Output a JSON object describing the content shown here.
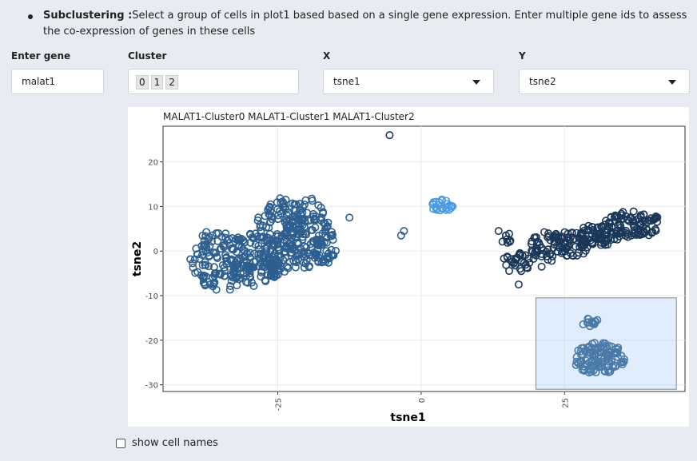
{
  "instructions": {
    "title": "Subclustering :",
    "text": "Select a group of cells in plot1 based based on a single gene expression. Enter multiple gene ids to assess the co-expression of genes in these cells"
  },
  "controls": {
    "gene": {
      "label": "Enter gene",
      "value": "malat1"
    },
    "cluster": {
      "label": "Cluster",
      "chips": [
        "0",
        "1",
        "2"
      ]
    },
    "x": {
      "label": "X",
      "value": "tsne1"
    },
    "y": {
      "label": "Y",
      "value": "tsne2"
    }
  },
  "show_cell_names_label": "show cell names",
  "chart_data": {
    "type": "scatter",
    "title": "MALAT1-Cluster0 MALAT1-Cluster1 MALAT1-Cluster2",
    "xlabel": "tsne1",
    "ylabel": "tsne2",
    "xlim": [
      -45,
      46
    ],
    "ylim": [
      -31.5,
      28
    ],
    "xticks": [
      -25,
      0,
      25
    ],
    "yticks": [
      20,
      10,
      0,
      -10,
      -20,
      -30
    ],
    "grid": true,
    "selection_box": {
      "x": [
        20,
        44.5
      ],
      "y": [
        -31,
        -10.5
      ]
    },
    "points": [
      {
        "x": -5.5,
        "y": 26,
        "color": "#1b3a5e"
      },
      {
        "x": -12.5,
        "y": 7.5,
        "color": "#2b5f8f"
      },
      {
        "x": -3,
        "y": 4.5,
        "color": "#2b5f8f"
      },
      {
        "x": -3.5,
        "y": 3.5,
        "color": "#2b5f8f"
      },
      {
        "x": 13.5,
        "y": 4.5,
        "color": "#1b3a5e"
      },
      {
        "x": 17,
        "y": -7.5,
        "color": "#1b3a5e"
      },
      {
        "x": 21,
        "y": -3.5,
        "color": "#1b3a5e"
      }
    ],
    "clusters": [
      {
        "color": "#2c5f8f",
        "blobs": [
          {
            "cx": -35,
            "cy": -2,
            "rx": 5.5,
            "ry": 7,
            "n": 130,
            "seed": 1
          },
          {
            "cx": -29,
            "cy": -2,
            "rx": 5,
            "ry": 6,
            "n": 110,
            "seed": 2
          },
          {
            "cx": -24.5,
            "cy": 3,
            "rx": 4.5,
            "ry": 9,
            "n": 150,
            "seed": 3
          },
          {
            "cx": -20,
            "cy": 4,
            "rx": 4,
            "ry": 8,
            "n": 110,
            "seed": 4
          },
          {
            "cx": -17,
            "cy": 1,
            "rx": 2.5,
            "ry": 4,
            "n": 35,
            "seed": 5
          }
        ]
      },
      {
        "color": "#4a9be0",
        "blobs": [
          {
            "cx": 3.5,
            "cy": 10,
            "rx": 2,
            "ry": 1.6,
            "n": 24,
            "seed": 6
          }
        ]
      },
      {
        "color": "#1a3658",
        "blobs": [
          {
            "cx": 17,
            "cy": -2.5,
            "rx": 2.8,
            "ry": 2.5,
            "n": 30,
            "seed": 7
          },
          {
            "cx": 22,
            "cy": 1,
            "rx": 3,
            "ry": 3.5,
            "n": 45,
            "seed": 8
          },
          {
            "cx": 26,
            "cy": 1.5,
            "rx": 3.5,
            "ry": 3,
            "n": 55,
            "seed": 9
          },
          {
            "cx": 31,
            "cy": 3.5,
            "rx": 4,
            "ry": 2.5,
            "n": 70,
            "seed": 10
          },
          {
            "cx": 37,
            "cy": 6,
            "rx": 5,
            "ry": 3,
            "n": 90,
            "seed": 11
          },
          {
            "cx": 15,
            "cy": 3,
            "rx": 1.2,
            "ry": 1.2,
            "n": 8,
            "seed": 12
          }
        ]
      },
      {
        "color": "#2a5a86",
        "blobs": [
          {
            "cx": 29.5,
            "cy": -16,
            "rx": 1.5,
            "ry": 1,
            "n": 14,
            "seed": 13
          },
          {
            "cx": 31,
            "cy": -24,
            "rx": 4.5,
            "ry": 3.5,
            "n": 110,
            "seed": 14
          }
        ]
      }
    ]
  }
}
